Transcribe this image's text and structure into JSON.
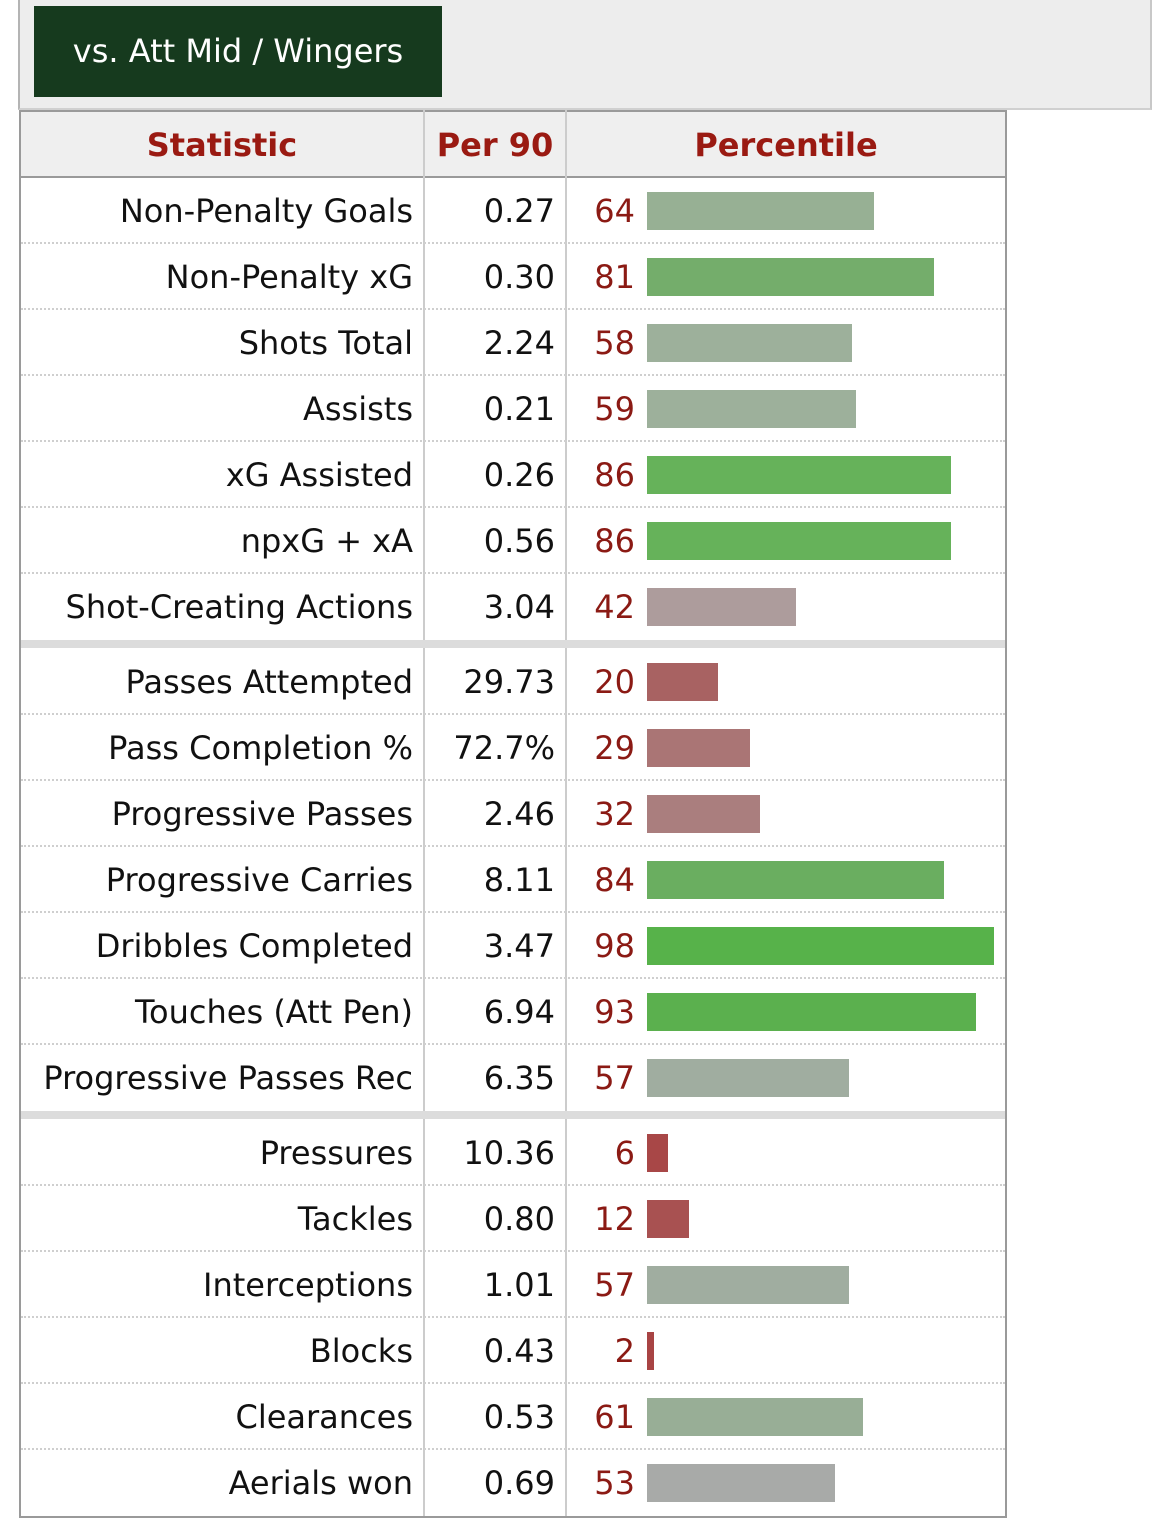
{
  "tab": {
    "label": "vs. Att Mid / Wingers"
  },
  "header": {
    "statistic": "Statistic",
    "per90": "Per 90",
    "percentile": "Percentile"
  },
  "colors": {
    "tab_bg": "#163a1e",
    "header_text": "#9a1a12",
    "percentile_text": "#8b1a14"
  },
  "groups": [
    {
      "rows": [
        {
          "stat": "Non-Penalty Goals",
          "per90": "0.27",
          "percentile": 64,
          "bar_color": "#97b094"
        },
        {
          "stat": "Non-Penalty xG",
          "per90": "0.30",
          "percentile": 81,
          "bar_color": "#74ad6b"
        },
        {
          "stat": "Shots Total",
          "per90": "2.24",
          "percentile": 58,
          "bar_color": "#9db09b"
        },
        {
          "stat": "Assists",
          "per90": "0.21",
          "percentile": 59,
          "bar_color": "#9db09b"
        },
        {
          "stat": "xG Assisted",
          "per90": "0.26",
          "percentile": 86,
          "bar_color": "#66b25a"
        },
        {
          "stat": "npxG + xA",
          "per90": "0.56",
          "percentile": 86,
          "bar_color": "#66b25a"
        },
        {
          "stat": "Shot-Creating Actions",
          "per90": "3.04",
          "percentile": 42,
          "bar_color": "#ad9c9c"
        }
      ]
    },
    {
      "rows": [
        {
          "stat": "Passes Attempted",
          "per90": "29.73",
          "percentile": 20,
          "bar_color": "#a86262"
        },
        {
          "stat": "Pass Completion %",
          "per90": "72.7%",
          "percentile": 29,
          "bar_color": "#aa7575"
        },
        {
          "stat": "Progressive Passes",
          "per90": "2.46",
          "percentile": 32,
          "bar_color": "#aa7e7e"
        },
        {
          "stat": "Progressive Carries",
          "per90": "8.11",
          "percentile": 84,
          "bar_color": "#6aae60"
        },
        {
          "stat": "Dribbles Completed",
          "per90": "3.47",
          "percentile": 98,
          "bar_color": "#57b24a"
        },
        {
          "stat": "Touches (Att Pen)",
          "per90": "6.94",
          "percentile": 93,
          "bar_color": "#5bb04e"
        },
        {
          "stat": "Progressive Passes Rec",
          "per90": "6.35",
          "percentile": 57,
          "bar_color": "#a0ada0"
        }
      ]
    },
    {
      "rows": [
        {
          "stat": "Pressures",
          "per90": "10.36",
          "percentile": 6,
          "bar_color": "#a84747"
        },
        {
          "stat": "Tackles",
          "per90": "0.80",
          "percentile": 12,
          "bar_color": "#a85151"
        },
        {
          "stat": "Interceptions",
          "per90": "1.01",
          "percentile": 57,
          "bar_color": "#a0ada0"
        },
        {
          "stat": "Blocks",
          "per90": "0.43",
          "percentile": 2,
          "bar_color": "#a84444"
        },
        {
          "stat": "Clearances",
          "per90": "0.53",
          "percentile": 61,
          "bar_color": "#98ae96"
        },
        {
          "stat": "Aerials won",
          "per90": "0.69",
          "percentile": 53,
          "bar_color": "#a8aaa8"
        }
      ]
    }
  ]
}
